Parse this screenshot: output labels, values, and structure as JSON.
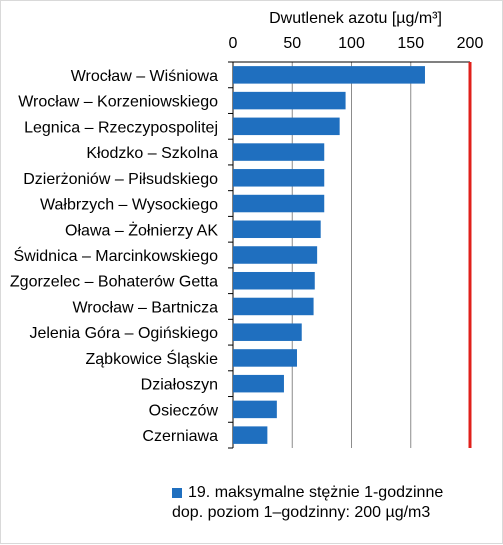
{
  "chart_data": {
    "type": "bar",
    "orientation": "horizontal",
    "title": "",
    "xlabel": "Dwutlenek azotu [µg/m³]",
    "ylabel": "",
    "xlim": [
      0,
      200
    ],
    "xticks": [
      0,
      50,
      100,
      150,
      200
    ],
    "x_axis_position": "top",
    "grid": true,
    "categories": [
      "Wrocław – Wiśniowa",
      "Wrocław – Korzeniowskiego",
      "Legnica – Rzeczypospolitej",
      "Kłodzko – Szkolna",
      "Dzierżoniów – Piłsudskiego",
      "Wałbrzych – Wysockiego",
      "Oława – Żołnierzy AK",
      "Świdnica – Marcinkowskiego",
      "Zgorzelec – Bohaterów Getta",
      "Wrocław – Bartnicza",
      "Jelenia Góra – Ogińskiego",
      "Ząbkowice Śląskie",
      "Działoszyn",
      "Osieczów",
      "Czerniawa"
    ],
    "series": [
      {
        "name": "19. maksymalne stężnie 1-godzinne",
        "color": "#1f6fbf",
        "values": [
          162,
          95,
          90,
          77,
          77,
          77,
          74,
          71,
          69,
          68,
          58,
          54,
          43,
          37,
          29
        ]
      }
    ],
    "reference_line": {
      "value": 200,
      "label": "dop. poziom 1–godzinny: 200 µg/m3",
      "color": "#e0201b"
    },
    "legend": {
      "position": "bottom",
      "entries": [
        "19. maksymalne stężnie 1-godzinne",
        "dop. poziom 1–godzinny: 200 µg/m3"
      ]
    }
  }
}
